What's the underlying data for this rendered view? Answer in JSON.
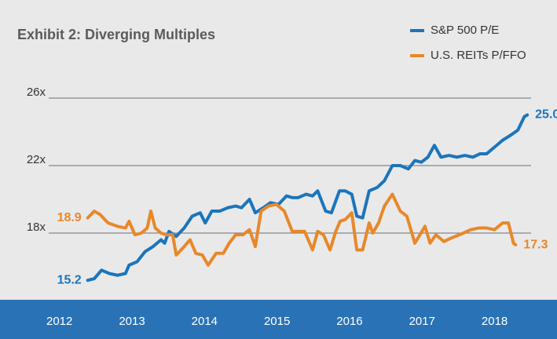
{
  "chart_data": {
    "type": "line",
    "title": "Exhibit 2: Diverging Multiples",
    "xlim": [
      2011.18,
      2018.86
    ],
    "xticks": [
      2012,
      2013,
      2014,
      2015,
      2016,
      2017,
      2018
    ],
    "ylim": [
      14,
      27
    ],
    "yticks": [
      {
        "value": 18,
        "label": "18x"
      },
      {
        "value": 22,
        "label": "22x"
      },
      {
        "value": 26,
        "label": "26x"
      }
    ],
    "grid": true,
    "legend": "top-right",
    "series": [
      {
        "name": "S&P 500 P/E",
        "color": "#1b75bb",
        "x": [
          2012.39,
          2012.48,
          2012.58,
          2012.69,
          2012.8,
          2012.91,
          2012.96,
          2013.07,
          2013.18,
          2013.29,
          2013.4,
          2013.45,
          2013.51,
          2013.61,
          2013.72,
          2013.83,
          2013.94,
          2014.01,
          2014.1,
          2014.21,
          2014.32,
          2014.43,
          2014.51,
          2014.62,
          2014.7,
          2014.81,
          2014.91,
          2015.02,
          2015.13,
          2015.21,
          2015.29,
          2015.4,
          2015.49,
          2015.56,
          2015.67,
          2015.75,
          2015.86,
          2015.94,
          2016.03,
          2016.1,
          2016.18,
          2016.27,
          2016.38,
          2016.48,
          2016.59,
          2016.7,
          2016.81,
          2016.9,
          2016.99,
          2017.08,
          2017.17,
          2017.26,
          2017.37,
          2017.48,
          2017.59,
          2017.7,
          2017.8,
          2017.89,
          2018.0,
          2018.11,
          2018.22,
          2018.32,
          2018.41,
          2018.45
        ],
        "values": [
          15.2,
          15.3,
          15.8,
          15.6,
          15.5,
          15.6,
          16.1,
          16.3,
          16.9,
          17.2,
          17.6,
          17.4,
          18.1,
          17.8,
          18.3,
          19.0,
          19.2,
          18.6,
          19.3,
          19.3,
          19.5,
          19.6,
          19.5,
          20.0,
          19.2,
          19.5,
          19.8,
          19.7,
          20.2,
          20.1,
          20.1,
          20.3,
          20.2,
          20.5,
          19.3,
          19.2,
          20.5,
          20.5,
          20.3,
          19.0,
          18.9,
          20.5,
          20.7,
          21.1,
          22.0,
          22.0,
          21.8,
          22.3,
          22.2,
          22.5,
          23.2,
          22.5,
          22.6,
          22.5,
          22.6,
          22.5,
          22.7,
          22.7,
          23.1,
          23.5,
          23.8,
          24.1,
          24.9,
          25
        ],
        "value_labels": [
          "15.2",
          null,
          null,
          null,
          null,
          null,
          null,
          null,
          null,
          null,
          null,
          null,
          null,
          null,
          null,
          null,
          null,
          null,
          null,
          null,
          null,
          null,
          null,
          null,
          null,
          null,
          null,
          null,
          null,
          null,
          null,
          null,
          null,
          null,
          null,
          null,
          null,
          null,
          null,
          null,
          null,
          null,
          null,
          null,
          null,
          null,
          null,
          null,
          null,
          null,
          null,
          null,
          null,
          null,
          null,
          null,
          null,
          null,
          null,
          null,
          null,
          null,
          null,
          "25.0"
        ]
      },
      {
        "name": "U.S. REITs P/FFO",
        "color": "#e8882a",
        "x": [
          2012.39,
          2012.48,
          2012.56,
          2012.67,
          2012.8,
          2012.91,
          2012.96,
          2013.04,
          2013.13,
          2013.21,
          2013.26,
          2013.32,
          2013.4,
          2013.47,
          2013.56,
          2013.61,
          2013.72,
          2013.8,
          2013.88,
          2013.97,
          2014.05,
          2014.16,
          2014.26,
          2014.34,
          2014.43,
          2014.53,
          2014.62,
          2014.7,
          2014.78,
          2014.88,
          2014.99,
          2015.1,
          2015.21,
          2015.29,
          2015.38,
          2015.49,
          2015.56,
          2015.64,
          2015.73,
          2015.81,
          2015.87,
          2015.94,
          2016.03,
          2016.1,
          2016.18,
          2016.27,
          2016.32,
          2016.4,
          2016.48,
          2016.59,
          2016.7,
          2016.79,
          2016.9,
          2016.97,
          2017.04,
          2017.11,
          2017.19,
          2017.3,
          2017.4,
          2017.57,
          2017.67,
          2017.78,
          2017.89,
          2018.0,
          2018.11,
          2018.19,
          2018.26,
          2018.29
        ],
        "values": [
          18.9,
          19.3,
          19.1,
          18.6,
          18.4,
          18.3,
          18.7,
          17.9,
          18.0,
          18.3,
          19.3,
          18.3,
          18.0,
          17.9,
          17.9,
          16.7,
          17.2,
          17.6,
          16.8,
          16.7,
          16.1,
          16.8,
          16.8,
          17.4,
          17.9,
          17.9,
          18.2,
          17.2,
          19.3,
          19.6,
          19.7,
          19.3,
          18.1,
          18.1,
          18.1,
          17.0,
          18.1,
          17.9,
          17.0,
          18.1,
          18.7,
          18.8,
          19.2,
          17.0,
          17.0,
          18.6,
          18.0,
          18.6,
          19.6,
          20.3,
          19.3,
          19.0,
          17.4,
          17.9,
          18.4,
          17.4,
          17.9,
          17.5,
          17.7,
          18.0,
          18.2,
          18.3,
          18.3,
          18.2,
          18.6,
          18.6,
          17.4,
          17.3
        ],
        "value_labels": [
          "18.9",
          null,
          null,
          null,
          null,
          null,
          null,
          null,
          null,
          null,
          null,
          null,
          null,
          null,
          null,
          null,
          null,
          null,
          null,
          null,
          null,
          null,
          null,
          null,
          null,
          null,
          null,
          null,
          null,
          null,
          null,
          null,
          null,
          null,
          null,
          null,
          null,
          null,
          null,
          null,
          null,
          null,
          null,
          null,
          null,
          null,
          null,
          null,
          null,
          null,
          null,
          null,
          null,
          null,
          null,
          null,
          null,
          null,
          null,
          null,
          null,
          null,
          null,
          null,
          null,
          null,
          null,
          "17.3"
        ]
      }
    ]
  }
}
